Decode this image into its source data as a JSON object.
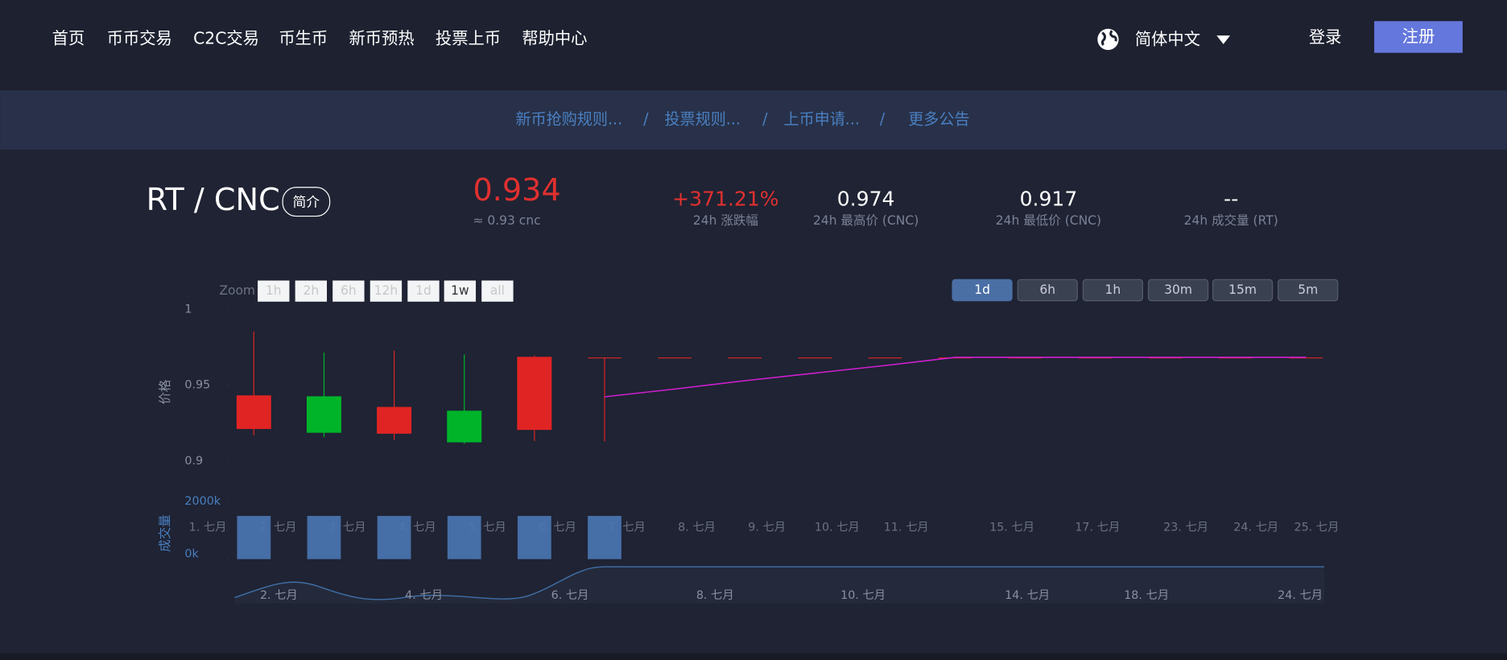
{
  "nav": {
    "items": [
      "首页",
      "币币交易",
      "C2C交易",
      "币生币",
      "新币预热",
      "投票上币",
      "帮助中心"
    ],
    "language": "简体中文",
    "login": "登录",
    "register": "注册"
  },
  "announcements": {
    "items": [
      "新币抢购规则...",
      "投票规则...",
      "上币申请...",
      "更多公告"
    ],
    "separator": "/"
  },
  "ticker": {
    "pair": "RT / CNC",
    "intro": "简介",
    "price": "0.934",
    "approx": "≈ 0.93 cnc",
    "stats": [
      {
        "value": "+371.21%",
        "label": "24h 涨跌幅"
      },
      {
        "value": "0.974",
        "label": "24h 最高价 (CNC)"
      },
      {
        "value": "0.917",
        "label": "24h 最低价 (CNC)"
      },
      {
        "value": "--",
        "label": "24h 成交量 (RT)"
      }
    ]
  },
  "chart_data": {
    "type": "candlestick",
    "zoom_label": "Zoom",
    "zoom_buttons": [
      "1h",
      "2h",
      "6h",
      "12h",
      "1d",
      "1w",
      "all"
    ],
    "periods": [
      "1d",
      "6h",
      "1h",
      "30m",
      "15m",
      "5m"
    ],
    "active_period": "1d",
    "ylabel": "价格",
    "ylim": [
      0.9,
      1
    ],
    "yticks": [
      0.9,
      0.95,
      1
    ],
    "volume_label": "成交量",
    "volume_lim": [
      0,
      2000
    ],
    "volume_ticks": [
      {
        "value": 0,
        "label": "0k"
      },
      {
        "value": 2000,
        "label": "2000k"
      }
    ],
    "up_color": "#e02424",
    "down_color": "#00b42a",
    "line_color": "#d01fd0",
    "volume_color": "#4a77b4",
    "open": [
      0.9215,
      0.9424,
      0.9184,
      0.9329,
      0.9209,
      0.968,
      0.968,
      0.968,
      0.968,
      0.968,
      0.968,
      0.968,
      0.968,
      0.968,
      0.968,
      0.968
    ],
    "high": [
      0.9854,
      0.9715,
      0.9728,
      0.9703,
      0.9696,
      0.968,
      0.968,
      0.968,
      0.968,
      0.968,
      0.968,
      0.968,
      0.968,
      0.968,
      0.968,
      0.968
    ],
    "low": [
      0.917,
      0.9158,
      0.9139,
      0.9114,
      0.9133,
      0.913,
      0.968,
      0.968,
      0.968,
      0.968,
      0.968,
      0.968,
      0.968,
      0.968,
      0.968,
      0.968
    ],
    "close": [
      0.943,
      0.919,
      0.9354,
      0.9127,
      0.9684,
      0.968,
      0.968,
      0.968,
      0.968,
      0.968,
      0.968,
      0.968,
      0.968,
      0.968,
      0.968,
      0.968
    ],
    "line": [
      null,
      null,
      null,
      null,
      null,
      0.9424,
      0.9475,
      0.953,
      0.958,
      0.963,
      0.9684,
      0.9684,
      0.9684,
      0.9684,
      0.9684,
      0.9684
    ],
    "volume": [
      1500,
      1500,
      1500,
      1500,
      1500,
      1500,
      0,
      0,
      0,
      0,
      0,
      0,
      0,
      0,
      0,
      0
    ],
    "xaxis_labels": [
      "1. 七月",
      "2. 七月",
      "3. 七月",
      "4. 七月",
      "5. 七月",
      "6. 七月",
      "7. 七月",
      "8. 七月",
      "9. 七月",
      "10. 七月",
      "11. 七月",
      "15. 七月",
      "17. 七月",
      "23. 七月",
      "24. 七月",
      "25. 七月"
    ],
    "navigator_labels": [
      "2. 七月",
      "4. 七月",
      "6. 七月",
      "8. 七月",
      "10. 七月",
      "14. 七月",
      "18. 七月",
      "24. 七月"
    ]
  }
}
